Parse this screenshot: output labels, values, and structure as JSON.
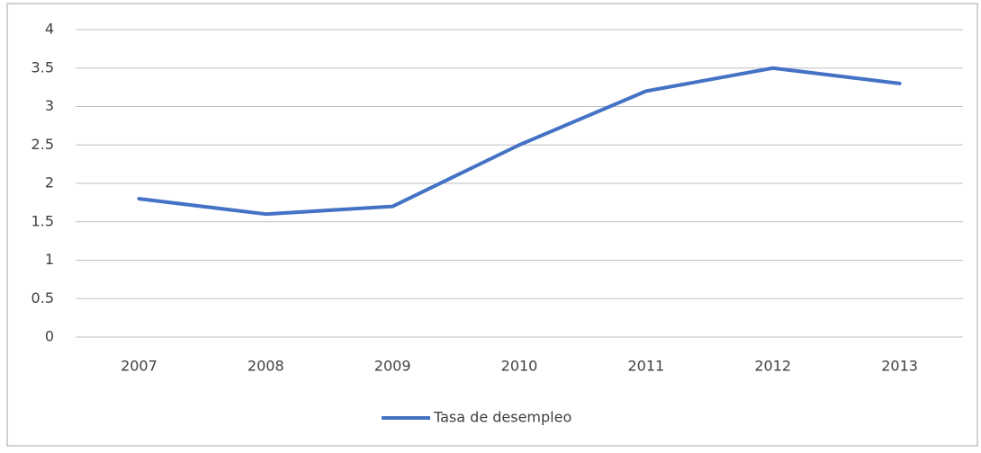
{
  "chart_data": {
    "type": "line",
    "categories": [
      "2007",
      "2008",
      "2009",
      "2010",
      "2011",
      "2012",
      "2013"
    ],
    "series": [
      {
        "name": "Tasa de desempleo",
        "color": "#4472c4",
        "values": [
          1.8,
          1.6,
          1.7,
          2.5,
          3.2,
          3.5,
          3.3
        ]
      }
    ],
    "ylim": [
      0,
      4
    ],
    "yticks": [
      0,
      0.5,
      1,
      1.5,
      2,
      2.5,
      3,
      3.5,
      4
    ],
    "grid": true,
    "legend": "bottom"
  }
}
